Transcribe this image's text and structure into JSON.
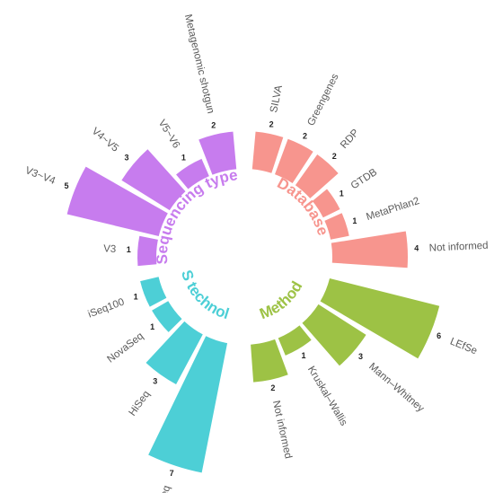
{
  "chart_data": {
    "type": "bar",
    "polar": true,
    "groups": [
      {
        "name": "Sequencing type",
        "color": "#c77cee",
        "categories": [
          "V3",
          "V3~V4",
          "V4~V5",
          "V5~V6",
          "Metagenomic shotgun"
        ],
        "values": [
          1,
          5,
          3,
          1,
          2
        ]
      },
      {
        "name": "Database",
        "color": "#f7958e",
        "categories": [
          "SILVA",
          "Greengenes",
          "RDP",
          "GTDB",
          "MetaPhlan2",
          "Not informed"
        ],
        "values": [
          2,
          2,
          2,
          1,
          1,
          4
        ]
      },
      {
        "name": "Method",
        "color": "#9dc245",
        "categories": [
          "LEfSe",
          "Mann–Whitney",
          "Kruskal–Wallis",
          "Not informed"
        ],
        "values": [
          6,
          3,
          1,
          2
        ]
      },
      {
        "name": "NGS technology",
        "color": "#4dcfd6",
        "categories": [
          "MiSeq",
          "HiSeq",
          "NovaSeq",
          "iSeq100"
        ],
        "values": [
          7,
          3,
          1,
          1
        ]
      }
    ],
    "value_labels": true,
    "grid": false,
    "legend": "none"
  }
}
